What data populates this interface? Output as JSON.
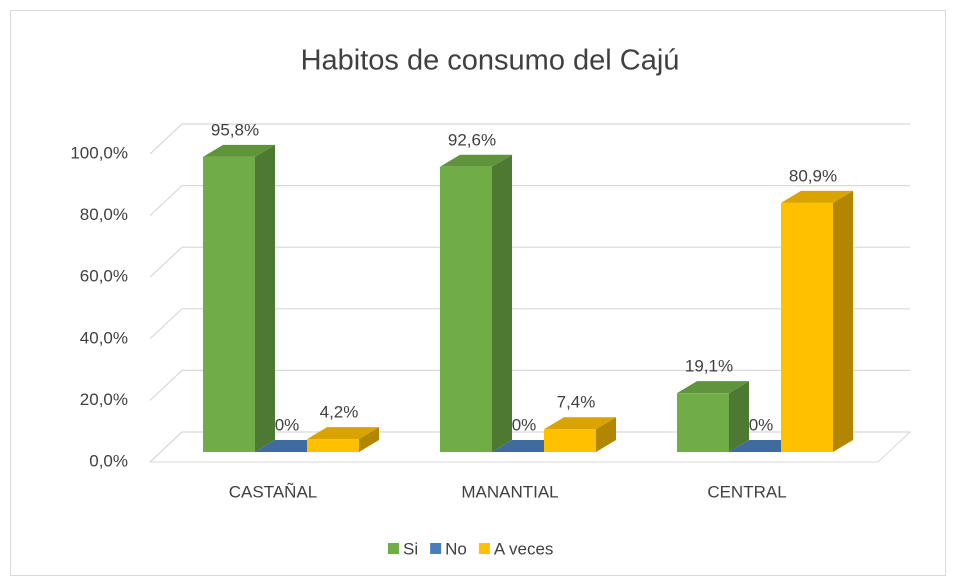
{
  "chart_data": {
    "type": "bar3d",
    "title": "Habitos de consumo del Cajú",
    "categories": [
      "CASTAÑAL",
      "MANANTIAL",
      "CENTRAL"
    ],
    "series": [
      {
        "name": "Si",
        "color": "#70ad47",
        "values": [
          95.8,
          92.6,
          19.1
        ],
        "value_labels": [
          "95,8%",
          "92,6%",
          "19,1%"
        ]
      },
      {
        "name": "No",
        "color": "#4a7ebb",
        "values": [
          0,
          0,
          0
        ],
        "value_labels": [
          "0%",
          "0%",
          "0%"
        ]
      },
      {
        "name": "A veces",
        "color": "#ffc000",
        "values": [
          4.2,
          7.4,
          80.9
        ],
        "value_labels": [
          "4,2%",
          "7,4%",
          "80,9%"
        ]
      }
    ],
    "ylim": [
      0,
      100
    ],
    "yticks": [
      {
        "value": 0,
        "label": "0,0%"
      },
      {
        "value": 20,
        "label": "20,0%"
      },
      {
        "value": 40,
        "label": "40,0%"
      },
      {
        "value": 60,
        "label": "60,0%"
      },
      {
        "value": 80,
        "label": "80,0%"
      },
      {
        "value": 100,
        "label": "100,0%"
      }
    ],
    "grid": true,
    "legend": "bottom"
  }
}
